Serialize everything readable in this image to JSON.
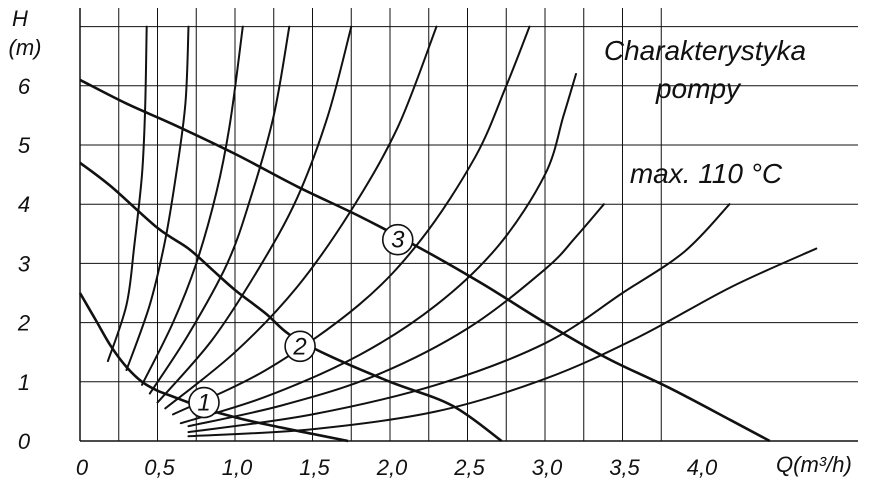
{
  "chart_data": {
    "type": "line",
    "title": "Charakterystyka pompy",
    "title_lines": [
      "Charakterystyka",
      "pompy"
    ],
    "annotation": "max. 110 °C",
    "ylabel_lines": [
      "H",
      "(m)"
    ],
    "xlabel": "Q(m³/h)",
    "xlim": [
      0,
      4.5
    ],
    "ylim": [
      0,
      7
    ],
    "x_ticks": [
      "0",
      "0,5",
      "1,0",
      "1,5",
      "2,0",
      "2,5",
      "3,0",
      "3,5",
      "4,0"
    ],
    "y_ticks": [
      "0",
      "1",
      "2",
      "3",
      "4",
      "5",
      "6"
    ],
    "grid": true,
    "series": [
      {
        "name": "1",
        "points": [
          [
            0,
            2.5
          ],
          [
            0.1,
            2.05
          ],
          [
            0.2,
            1.6
          ],
          [
            0.3,
            1.25
          ],
          [
            0.4,
            1.0
          ],
          [
            0.5,
            0.85
          ],
          [
            0.6,
            0.75
          ],
          [
            0.7,
            0.65
          ],
          [
            0.8,
            0.55
          ],
          [
            1.0,
            0.4
          ],
          [
            1.2,
            0.28
          ],
          [
            1.5,
            0.12
          ],
          [
            1.73,
            0.0
          ]
        ]
      },
      {
        "name": "2",
        "points": [
          [
            0,
            4.7
          ],
          [
            0.2,
            4.3
          ],
          [
            0.5,
            3.6
          ],
          [
            0.7,
            3.25
          ],
          [
            0.85,
            2.9
          ],
          [
            1.0,
            2.55
          ],
          [
            1.2,
            2.15
          ],
          [
            1.35,
            1.8
          ],
          [
            1.6,
            1.45
          ],
          [
            2.0,
            1.0
          ],
          [
            2.4,
            0.6
          ],
          [
            2.72,
            0.0
          ]
        ]
      },
      {
        "name": "3",
        "points": [
          [
            0,
            6.1
          ],
          [
            0.3,
            5.7
          ],
          [
            0.6,
            5.35
          ],
          [
            1.0,
            4.85
          ],
          [
            1.4,
            4.3
          ],
          [
            1.8,
            3.8
          ],
          [
            2.2,
            3.25
          ],
          [
            2.6,
            2.65
          ],
          [
            3.0,
            2.0
          ],
          [
            3.4,
            1.4
          ],
          [
            3.8,
            0.9
          ],
          [
            4.2,
            0.35
          ],
          [
            4.45,
            0.0
          ]
        ]
      }
    ],
    "marked_points": [
      {
        "label": "1",
        "x": 0.8,
        "y": 0.65
      },
      {
        "label": "2",
        "x": 1.42,
        "y": 1.6
      },
      {
        "label": "3",
        "x": 2.05,
        "y": 3.4
      }
    ],
    "system_curves": [
      {
        "points": [
          [
            0.18,
            1.35
          ],
          [
            0.3,
            2.3
          ],
          [
            0.35,
            3.3
          ],
          [
            0.4,
            4.5
          ],
          [
            0.42,
            5.6
          ],
          [
            0.43,
            7.0
          ]
        ]
      },
      {
        "points": [
          [
            0.3,
            1.2
          ],
          [
            0.45,
            2.3
          ],
          [
            0.55,
            3.4
          ],
          [
            0.62,
            4.5
          ],
          [
            0.68,
            5.7
          ],
          [
            0.7,
            7.0
          ]
        ]
      },
      {
        "points": [
          [
            0.4,
            0.95
          ],
          [
            0.6,
            2.0
          ],
          [
            0.75,
            3.0
          ],
          [
            0.88,
            4.2
          ],
          [
            0.97,
            5.4
          ],
          [
            1.05,
            7.0
          ]
        ]
      },
      {
        "points": [
          [
            0.45,
            0.8
          ],
          [
            0.7,
            1.8
          ],
          [
            0.95,
            3.0
          ],
          [
            1.1,
            4.1
          ],
          [
            1.25,
            5.5
          ],
          [
            1.35,
            7.0
          ]
        ]
      },
      {
        "points": [
          [
            0.5,
            0.65
          ],
          [
            0.85,
            1.7
          ],
          [
            1.15,
            2.9
          ],
          [
            1.4,
            4.1
          ],
          [
            1.6,
            5.5
          ],
          [
            1.75,
            7.0
          ]
        ]
      },
      {
        "points": [
          [
            0.55,
            0.55
          ],
          [
            1.0,
            1.5
          ],
          [
            1.4,
            2.6
          ],
          [
            1.75,
            3.9
          ],
          [
            2.05,
            5.3
          ],
          [
            2.3,
            7.0
          ]
        ]
      },
      {
        "points": [
          [
            0.6,
            0.45
          ],
          [
            1.2,
            1.2
          ],
          [
            1.8,
            2.3
          ],
          [
            2.2,
            3.4
          ],
          [
            2.55,
            4.8
          ],
          [
            2.75,
            6.0
          ],
          [
            2.9,
            7.0
          ]
        ]
      },
      {
        "points": [
          [
            0.65,
            0.3
          ],
          [
            1.2,
            0.75
          ],
          [
            1.8,
            1.45
          ],
          [
            2.3,
            2.3
          ],
          [
            2.7,
            3.3
          ],
          [
            3.0,
            4.5
          ],
          [
            3.12,
            5.5
          ],
          [
            3.2,
            6.2
          ]
        ]
      },
      {
        "points": [
          [
            0.7,
            0.25
          ],
          [
            1.3,
            0.6
          ],
          [
            1.9,
            1.1
          ],
          [
            2.5,
            1.9
          ],
          [
            3.0,
            2.9
          ],
          [
            3.2,
            3.45
          ],
          [
            3.38,
            4.0
          ]
        ]
      },
      {
        "points": [
          [
            0.7,
            0.15
          ],
          [
            1.5,
            0.45
          ],
          [
            2.3,
            0.95
          ],
          [
            3.0,
            1.65
          ],
          [
            3.5,
            2.5
          ],
          [
            3.9,
            3.2
          ],
          [
            4.19,
            4.0
          ]
        ]
      },
      {
        "points": [
          [
            0.7,
            0.08
          ],
          [
            1.5,
            0.2
          ],
          [
            2.3,
            0.5
          ],
          [
            3.0,
            1.05
          ],
          [
            3.6,
            1.75
          ],
          [
            4.2,
            2.6
          ],
          [
            4.75,
            3.25
          ]
        ]
      }
    ]
  }
}
